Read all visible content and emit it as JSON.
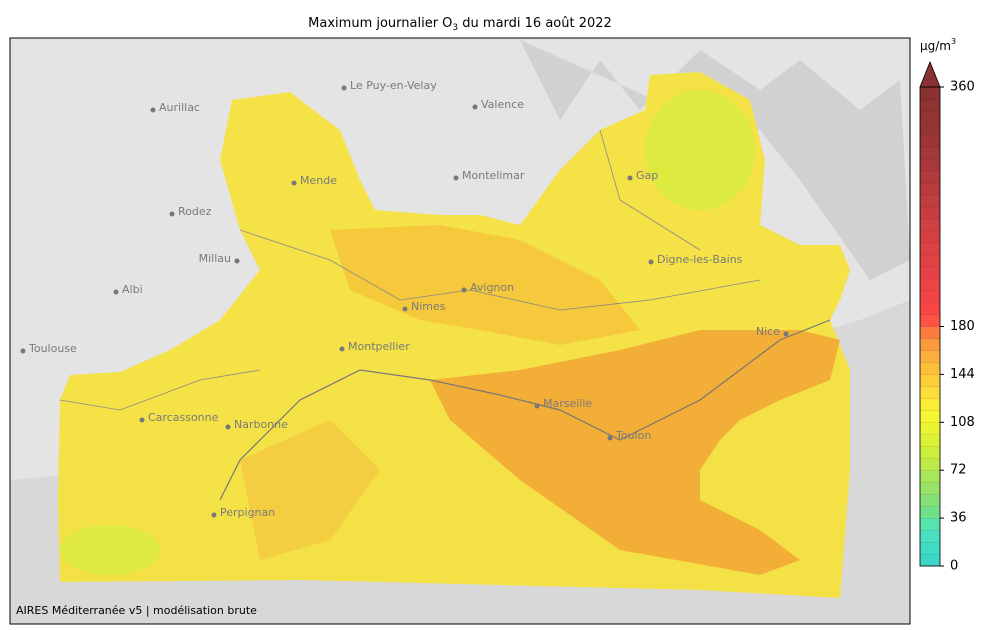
{
  "title": {
    "before": "Maximum journalier O",
    "sub": "3",
    "after": " du mardi 16 août 2022"
  },
  "colorbar": {
    "unit": {
      "base": "µg/m",
      "sup": "3"
    },
    "clim": [
      0,
      360
    ],
    "ticks": [
      0,
      36,
      72,
      108,
      144,
      180,
      360
    ],
    "colors": [
      "#3dd6c6",
      "#40dcc3",
      "#48e0bf",
      "#55e3ae",
      "#72e08a",
      "#86e078",
      "#98e268",
      "#a8e65a",
      "#bcea48",
      "#ccee3e",
      "#dcf236",
      "#eaf532",
      "#f6f632",
      "#fbec36",
      "#fcdd3a",
      "#fcce3a",
      "#fcbf3a",
      "#fcaf3c",
      "#fb993e",
      "#fb7c40",
      "#fb5444",
      "#f84646",
      "#f24446",
      "#ec4446",
      "#e64246",
      "#e04244",
      "#da4244",
      "#d44042",
      "#ce4042",
      "#c83e40",
      "#c03e40",
      "#b83c3e",
      "#b03a3c",
      "#a8383a",
      "#a23838",
      "#9c3636",
      "#963434",
      "#923434",
      "#8e3232",
      "#8a3232"
    ]
  },
  "cities": [
    "Aurillac",
    "Le Puy-en-Velay",
    "Valence",
    "Mende",
    "Montelimar",
    "Gap",
    "Rodez",
    "Millau",
    "Digne-les-Bains",
    "Albi",
    "Avignon",
    "Nimes",
    "Nice",
    "Toulouse",
    "Montpellier",
    "Marseille",
    "Carcassonne",
    "Narbonne",
    "Toulon",
    "Perpignan"
  ],
  "footer": "AIRES Méditerranée v5 | modélisation brute"
}
